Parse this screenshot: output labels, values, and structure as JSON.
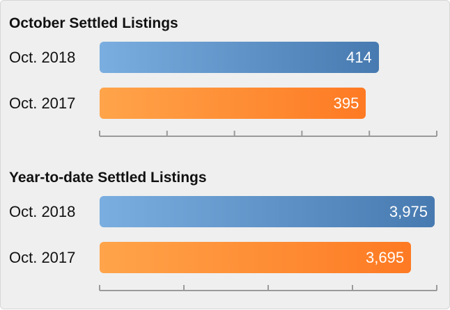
{
  "chart_data": [
    {
      "type": "bar",
      "orientation": "horizontal",
      "title": "October Settled Listings",
      "categories": [
        "Oct. 2018",
        "Oct. 2017"
      ],
      "values": [
        414,
        395
      ],
      "value_labels": [
        "414",
        "395"
      ],
      "colors": [
        "#5b8fc9",
        "#ff8c35"
      ],
      "xlim": [
        0,
        500
      ],
      "tick_values": [
        0,
        100,
        200,
        300,
        400,
        500
      ],
      "grid": false,
      "tick_labels_shown": false
    },
    {
      "type": "bar",
      "orientation": "horizontal",
      "title": "Year-to-date Settled Listings",
      "categories": [
        "Oct. 2018",
        "Oct. 2017"
      ],
      "values": [
        3975,
        3695
      ],
      "value_labels": [
        "3,975",
        "3,695"
      ],
      "colors": [
        "#5b8fc9",
        "#ff8c35"
      ],
      "xlim": [
        0,
        4000
      ],
      "tick_values": [
        0,
        1000,
        2000,
        3000,
        4000
      ],
      "grid": false,
      "tick_labels_shown": false
    }
  ]
}
